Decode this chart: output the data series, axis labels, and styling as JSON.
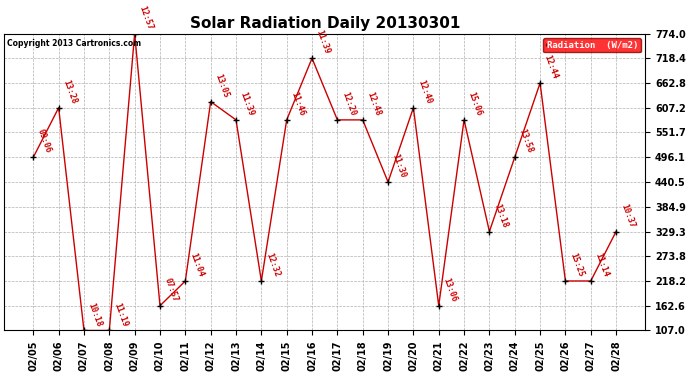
{
  "title": "Solar Radiation Daily 20130301",
  "copyright": "Copyright 2013 Cartronics.com",
  "legend_label": "Radiation  (W/m2)",
  "dates": [
    "02/05",
    "02/06",
    "02/07",
    "02/08",
    "02/09",
    "02/10",
    "02/11",
    "02/12",
    "02/13",
    "02/14",
    "02/15",
    "02/16",
    "02/17",
    "02/18",
    "02/19",
    "02/20",
    "02/21",
    "02/22",
    "02/23",
    "02/24",
    "02/25",
    "02/26",
    "02/27",
    "02/28"
  ],
  "values": [
    496.1,
    607.2,
    107.0,
    107.0,
    774.0,
    162.6,
    218.2,
    621.0,
    580.0,
    218.2,
    580.0,
    718.4,
    580.0,
    580.0,
    440.5,
    607.2,
    162.6,
    580.0,
    329.3,
    496.1,
    662.8,
    218.2,
    218.2,
    329.3
  ],
  "time_labels": [
    "09:06",
    "13:28",
    "10:18",
    "11:19",
    "12:57",
    "07:57",
    "11:04",
    "13:05",
    "11:39",
    "12:32",
    "11:46",
    "11:39",
    "12:20",
    "12:48",
    "11:30",
    "12:40",
    "13:06",
    "15:06",
    "13:18",
    "13:58",
    "12:44",
    "15:25",
    "11:14",
    "10:37"
  ],
  "ylim": [
    107.0,
    774.0
  ],
  "yticks": [
    107.0,
    162.6,
    218.2,
    273.8,
    329.3,
    384.9,
    440.5,
    496.1,
    551.7,
    607.2,
    662.8,
    718.4,
    774.0
  ],
  "line_color": "#cc0000",
  "marker_color": "#000000",
  "bg_color": "#ffffff",
  "grid_color": "#b0b0b0",
  "title_fontsize": 11,
  "tick_fontsize": 7,
  "annotation_fontsize": 6
}
